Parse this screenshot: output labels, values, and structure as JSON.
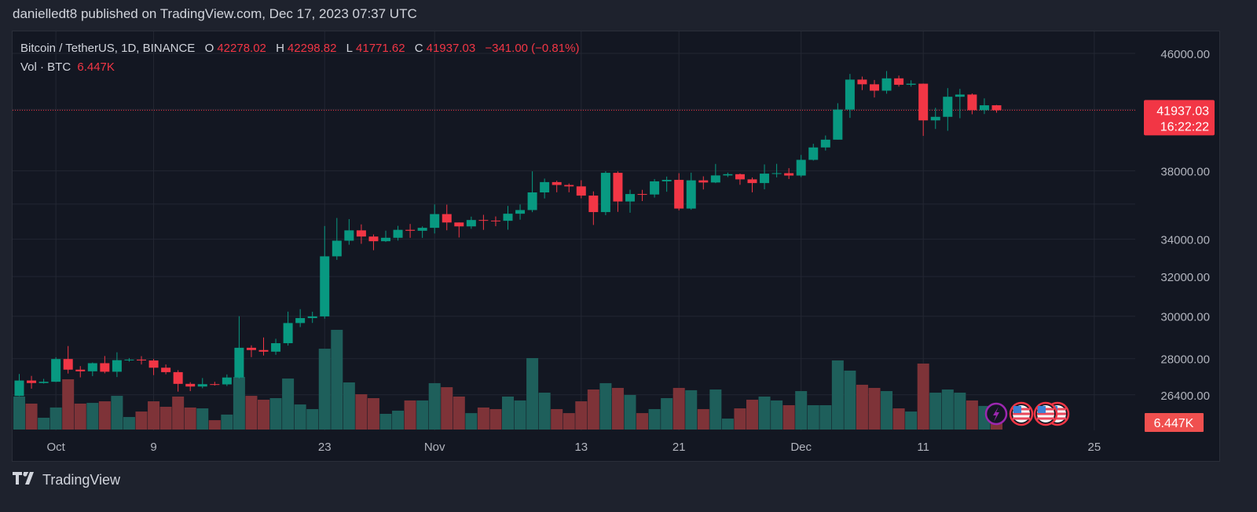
{
  "header": {
    "published": "danielledt8 published on TradingView.com, Dec 17, 2023 07:37 UTC"
  },
  "legend": {
    "symbol": "Bitcoin / TetherUS, 1D, BINANCE",
    "open_label": "O",
    "open": "42278.02",
    "high_label": "H",
    "high": "42298.82",
    "low_label": "L",
    "low": "41771.62",
    "close_label": "C",
    "close": "41937.03",
    "change": "−341.00 (−0.81%)",
    "vol_label": "Vol · BTC",
    "vol": "6.447K"
  },
  "price_badge": {
    "price": "41937.03",
    "countdown": "16:22:22"
  },
  "volume_badge": "6.447K",
  "footer": {
    "brand": "TradingView",
    "logo_text": "17"
  },
  "colors": {
    "up": "#089981",
    "down": "#f23645",
    "vol_up": "#1e5f5b",
    "vol_down": "#7e3338",
    "background": "#131722",
    "grid": "#232733"
  },
  "events": [
    {
      "icon": "lightning-icon"
    },
    {
      "icon": "us-flag-icon"
    },
    {
      "icon": "us-flag-icon"
    },
    {
      "icon": "us-flag-icon"
    }
  ],
  "chart_data": {
    "type": "candlestick",
    "scale": "log",
    "ylim": [
      25800,
      47500
    ],
    "y_ticks": [
      "46000.00",
      "38000.00",
      "34000.00",
      "32000.00",
      "30000.00",
      "28000.00",
      "26400.00"
    ],
    "y_tick_values": [
      46000,
      38000,
      34000,
      32000,
      30000,
      28000,
      26400
    ],
    "x_ticks": [
      {
        "label": "Oct",
        "date": "2023-10-01"
      },
      {
        "label": "9",
        "date": "2023-10-09"
      },
      {
        "label": "23",
        "date": "2023-10-23"
      },
      {
        "label": "Nov",
        "date": "2023-11-01"
      },
      {
        "label": "13",
        "date": "2023-11-13"
      },
      {
        "label": "21",
        "date": "2023-11-21"
      },
      {
        "label": "Dec",
        "date": "2023-12-01"
      },
      {
        "label": "11",
        "date": "2023-12-11"
      },
      {
        "label": "25",
        "date": "2023-12-25"
      }
    ],
    "last_price": 41937.03,
    "volume_unit": "K BTC",
    "columns": [
      "date",
      "open",
      "high",
      "low",
      "close",
      "volume"
    ],
    "candles": [
      [
        "2023-09-28",
        26352,
        27308,
        26340,
        27021,
        27.1
      ],
      [
        "2023-09-29",
        27021,
        27225,
        26665,
        26911,
        21.3
      ],
      [
        "2023-09-30",
        26911,
        27094,
        26886,
        26967,
        9.7
      ],
      [
        "2023-10-01",
        26967,
        28065,
        26954,
        27983,
        18.1
      ],
      [
        "2023-10-02",
        27983,
        28580,
        27330,
        27503,
        41.3
      ],
      [
        "2023-10-03",
        27503,
        27664,
        27160,
        27429,
        21.3
      ],
      [
        "2023-10-04",
        27429,
        27826,
        27216,
        27794,
        21.9
      ],
      [
        "2023-10-05",
        27794,
        28120,
        27340,
        27410,
        23.2
      ],
      [
        "2023-10-06",
        27410,
        28291,
        27175,
        27931,
        27.7
      ],
      [
        "2023-10-07",
        27931,
        28028,
        27865,
        27956,
        10.3
      ],
      [
        "2023-10-08",
        27956,
        28115,
        27736,
        27917,
        14.8
      ],
      [
        "2023-10-09",
        27917,
        27987,
        27260,
        27590,
        23.2
      ],
      [
        "2023-10-10",
        27590,
        27735,
        27298,
        27392,
        18.7
      ],
      [
        "2023-10-11",
        27392,
        27479,
        26538,
        26875,
        27.1
      ],
      [
        "2023-10-12",
        26875,
        26947,
        26560,
        26759,
        18.1
      ],
      [
        "2023-10-13",
        26759,
        27130,
        26685,
        26862,
        17.4
      ],
      [
        "2023-10-14",
        26862,
        26965,
        26800,
        26852,
        7.7
      ],
      [
        "2023-10-15",
        26852,
        27290,
        26780,
        27154,
        12.3
      ],
      [
        "2023-10-16",
        27154,
        30000,
        27112,
        28500,
        43.2
      ],
      [
        "2023-10-17",
        28500,
        28613,
        28069,
        28395,
        27.7
      ],
      [
        "2023-10-18",
        28395,
        28982,
        28142,
        28320,
        24.5
      ],
      [
        "2023-10-19",
        28320,
        28920,
        28175,
        28713,
        25.8
      ],
      [
        "2023-10-20",
        28713,
        30225,
        28600,
        29669,
        41.9
      ],
      [
        "2023-10-21",
        29669,
        30346,
        29476,
        29909,
        20.6
      ],
      [
        "2023-10-22",
        29909,
        30220,
        29675,
        29992,
        16.8
      ],
      [
        "2023-10-23",
        29992,
        34741,
        29883,
        33069,
        66.4
      ],
      [
        "2023-10-24",
        33069,
        35198,
        32880,
        33922,
        81.9
      ],
      [
        "2023-10-25",
        33922,
        35132,
        33700,
        34496,
        38.7
      ],
      [
        "2023-10-26",
        34496,
        34832,
        33750,
        34151,
        29.0
      ],
      [
        "2023-10-27",
        34151,
        34267,
        33400,
        33892,
        25.8
      ],
      [
        "2023-10-28",
        33892,
        34478,
        33850,
        34082,
        12.9
      ],
      [
        "2023-10-29",
        34082,
        34750,
        33927,
        34525,
        15.5
      ],
      [
        "2023-10-30",
        34525,
        34856,
        34080,
        34474,
        23.9
      ],
      [
        "2023-10-31",
        34474,
        34720,
        34077,
        34639,
        23.9
      ],
      [
        "2023-11-01",
        34639,
        35984,
        34320,
        35421,
        38.1
      ],
      [
        "2023-11-02",
        35421,
        35970,
        34500,
        34941,
        34.8
      ],
      [
        "2023-11-03",
        34941,
        34942,
        34100,
        34720,
        27.1
      ],
      [
        "2023-11-04",
        34720,
        35275,
        34582,
        35082,
        13.5
      ],
      [
        "2023-11-05",
        35082,
        35380,
        34525,
        35049,
        18.1
      ],
      [
        "2023-11-06",
        35049,
        35286,
        34730,
        35037,
        16.8
      ],
      [
        "2023-11-07",
        35037,
        35892,
        34532,
        35443,
        27.1
      ],
      [
        "2023-11-08",
        35443,
        35980,
        35100,
        35655,
        23.9
      ],
      [
        "2023-11-09",
        35655,
        37972,
        35534,
        36693,
        58.7
      ],
      [
        "2023-11-10",
        36693,
        37526,
        36333,
        37313,
        30.3
      ],
      [
        "2023-11-11",
        37313,
        37400,
        36700,
        37138,
        16.8
      ],
      [
        "2023-11-12",
        37138,
        37228,
        36700,
        37054,
        13.5
      ],
      [
        "2023-11-13",
        37054,
        37425,
        36341,
        36502,
        23.2
      ],
      [
        "2023-11-14",
        36502,
        36753,
        34800,
        35537,
        32.9
      ],
      [
        "2023-11-15",
        35537,
        37980,
        35360,
        37880,
        38.1
      ],
      [
        "2023-11-16",
        37880,
        37969,
        35550,
        36154,
        34.2
      ],
      [
        "2023-11-17",
        36154,
        36852,
        35500,
        36596,
        28.4
      ],
      [
        "2023-11-18",
        36596,
        36845,
        36180,
        36568,
        13.5
      ],
      [
        "2023-11-19",
        36568,
        37500,
        36386,
        37359,
        16.8
      ],
      [
        "2023-11-20",
        37359,
        37650,
        36733,
        37449,
        25.8
      ],
      [
        "2023-11-21",
        37449,
        37855,
        35632,
        35741,
        34.2
      ],
      [
        "2023-11-22",
        35741,
        37888,
        35670,
        37420,
        32.3
      ],
      [
        "2023-11-23",
        37420,
        37664,
        36870,
        37289,
        16.8
      ],
      [
        "2023-11-24",
        37289,
        38431,
        37251,
        37720,
        32.9
      ],
      [
        "2023-11-25",
        37720,
        37892,
        37619,
        37796,
        9.0
      ],
      [
        "2023-11-26",
        37796,
        37833,
        37150,
        37479,
        17.4
      ],
      [
        "2023-11-27",
        37479,
        37592,
        36700,
        37254,
        24.5
      ],
      [
        "2023-11-28",
        37254,
        38400,
        36878,
        37831,
        27.1
      ],
      [
        "2023-11-29",
        37831,
        38437,
        37600,
        37858,
        23.9
      ],
      [
        "2023-11-30",
        37858,
        38167,
        37500,
        37712,
        20.0
      ],
      [
        "2023-12-01",
        37712,
        38999,
        37616,
        38688,
        31.6
      ],
      [
        "2023-12-02",
        38688,
        39712,
        38640,
        39476,
        20.0
      ],
      [
        "2023-12-03",
        39476,
        40250,
        39278,
        39978,
        20.0
      ],
      [
        "2023-12-04",
        39978,
        42420,
        39978,
        41980,
        56.8
      ],
      [
        "2023-12-05",
        41980,
        44488,
        41420,
        44080,
        48.4
      ],
      [
        "2023-12-06",
        44080,
        44300,
        43335,
        43746,
        36.8
      ],
      [
        "2023-12-07",
        43746,
        44050,
        42821,
        43293,
        34.2
      ],
      [
        "2023-12-08",
        43293,
        44700,
        43081,
        44170,
        31.6
      ],
      [
        "2023-12-09",
        44170,
        44370,
        43584,
        43713,
        17.4
      ],
      [
        "2023-12-10",
        43713,
        44034,
        43582,
        43789,
        14.8
      ],
      [
        "2023-12-11",
        43789,
        43801,
        40222,
        41253,
        54.2
      ],
      [
        "2023-12-12",
        41253,
        42104,
        40680,
        41492,
        30.3
      ],
      [
        "2023-12-13",
        41492,
        43475,
        40560,
        42869,
        32.9
      ],
      [
        "2023-12-14",
        42869,
        43420,
        41400,
        43022,
        30.3
      ],
      [
        "2023-12-15",
        43022,
        43100,
        41666,
        41941,
        23.9
      ],
      [
        "2023-12-16",
        41941,
        42755,
        41681,
        42278.02,
        19.4
      ],
      [
        "2023-12-17",
        42278.02,
        42298.82,
        41771.62,
        41937.03,
        6.447
      ]
    ]
  }
}
